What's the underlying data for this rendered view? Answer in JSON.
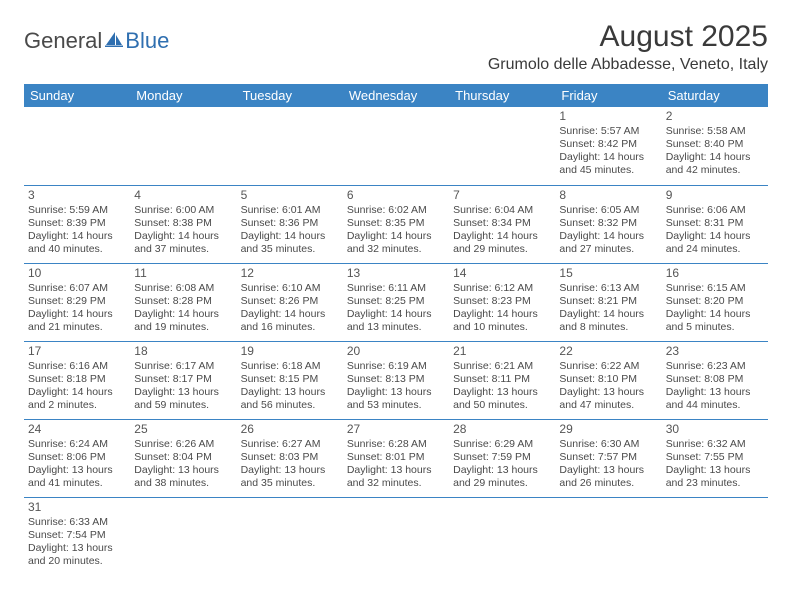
{
  "logo": {
    "part1": "General",
    "part2": "Blue"
  },
  "title": "August 2025",
  "location": "Grumolo delle Abbadesse, Veneto, Italy",
  "colors": {
    "header_bg": "#3b84c4",
    "header_text": "#ffffff",
    "border": "#3b84c4",
    "text": "#4a4a4a",
    "logo_blue": "#2f6fb0"
  },
  "dayHeaders": [
    "Sunday",
    "Monday",
    "Tuesday",
    "Wednesday",
    "Thursday",
    "Friday",
    "Saturday"
  ],
  "weeks": [
    [
      null,
      null,
      null,
      null,
      null,
      {
        "n": "1",
        "sr": "Sunrise: 5:57 AM",
        "ss": "Sunset: 8:42 PM",
        "d1": "Daylight: 14 hours",
        "d2": "and 45 minutes."
      },
      {
        "n": "2",
        "sr": "Sunrise: 5:58 AM",
        "ss": "Sunset: 8:40 PM",
        "d1": "Daylight: 14 hours",
        "d2": "and 42 minutes."
      }
    ],
    [
      {
        "n": "3",
        "sr": "Sunrise: 5:59 AM",
        "ss": "Sunset: 8:39 PM",
        "d1": "Daylight: 14 hours",
        "d2": "and 40 minutes."
      },
      {
        "n": "4",
        "sr": "Sunrise: 6:00 AM",
        "ss": "Sunset: 8:38 PM",
        "d1": "Daylight: 14 hours",
        "d2": "and 37 minutes."
      },
      {
        "n": "5",
        "sr": "Sunrise: 6:01 AM",
        "ss": "Sunset: 8:36 PM",
        "d1": "Daylight: 14 hours",
        "d2": "and 35 minutes."
      },
      {
        "n": "6",
        "sr": "Sunrise: 6:02 AM",
        "ss": "Sunset: 8:35 PM",
        "d1": "Daylight: 14 hours",
        "d2": "and 32 minutes."
      },
      {
        "n": "7",
        "sr": "Sunrise: 6:04 AM",
        "ss": "Sunset: 8:34 PM",
        "d1": "Daylight: 14 hours",
        "d2": "and 29 minutes."
      },
      {
        "n": "8",
        "sr": "Sunrise: 6:05 AM",
        "ss": "Sunset: 8:32 PM",
        "d1": "Daylight: 14 hours",
        "d2": "and 27 minutes."
      },
      {
        "n": "9",
        "sr": "Sunrise: 6:06 AM",
        "ss": "Sunset: 8:31 PM",
        "d1": "Daylight: 14 hours",
        "d2": "and 24 minutes."
      }
    ],
    [
      {
        "n": "10",
        "sr": "Sunrise: 6:07 AM",
        "ss": "Sunset: 8:29 PM",
        "d1": "Daylight: 14 hours",
        "d2": "and 21 minutes."
      },
      {
        "n": "11",
        "sr": "Sunrise: 6:08 AM",
        "ss": "Sunset: 8:28 PM",
        "d1": "Daylight: 14 hours",
        "d2": "and 19 minutes."
      },
      {
        "n": "12",
        "sr": "Sunrise: 6:10 AM",
        "ss": "Sunset: 8:26 PM",
        "d1": "Daylight: 14 hours",
        "d2": "and 16 minutes."
      },
      {
        "n": "13",
        "sr": "Sunrise: 6:11 AM",
        "ss": "Sunset: 8:25 PM",
        "d1": "Daylight: 14 hours",
        "d2": "and 13 minutes."
      },
      {
        "n": "14",
        "sr": "Sunrise: 6:12 AM",
        "ss": "Sunset: 8:23 PM",
        "d1": "Daylight: 14 hours",
        "d2": "and 10 minutes."
      },
      {
        "n": "15",
        "sr": "Sunrise: 6:13 AM",
        "ss": "Sunset: 8:21 PM",
        "d1": "Daylight: 14 hours",
        "d2": "and 8 minutes."
      },
      {
        "n": "16",
        "sr": "Sunrise: 6:15 AM",
        "ss": "Sunset: 8:20 PM",
        "d1": "Daylight: 14 hours",
        "d2": "and 5 minutes."
      }
    ],
    [
      {
        "n": "17",
        "sr": "Sunrise: 6:16 AM",
        "ss": "Sunset: 8:18 PM",
        "d1": "Daylight: 14 hours",
        "d2": "and 2 minutes."
      },
      {
        "n": "18",
        "sr": "Sunrise: 6:17 AM",
        "ss": "Sunset: 8:17 PM",
        "d1": "Daylight: 13 hours",
        "d2": "and 59 minutes."
      },
      {
        "n": "19",
        "sr": "Sunrise: 6:18 AM",
        "ss": "Sunset: 8:15 PM",
        "d1": "Daylight: 13 hours",
        "d2": "and 56 minutes."
      },
      {
        "n": "20",
        "sr": "Sunrise: 6:19 AM",
        "ss": "Sunset: 8:13 PM",
        "d1": "Daylight: 13 hours",
        "d2": "and 53 minutes."
      },
      {
        "n": "21",
        "sr": "Sunrise: 6:21 AM",
        "ss": "Sunset: 8:11 PM",
        "d1": "Daylight: 13 hours",
        "d2": "and 50 minutes."
      },
      {
        "n": "22",
        "sr": "Sunrise: 6:22 AM",
        "ss": "Sunset: 8:10 PM",
        "d1": "Daylight: 13 hours",
        "d2": "and 47 minutes."
      },
      {
        "n": "23",
        "sr": "Sunrise: 6:23 AM",
        "ss": "Sunset: 8:08 PM",
        "d1": "Daylight: 13 hours",
        "d2": "and 44 minutes."
      }
    ],
    [
      {
        "n": "24",
        "sr": "Sunrise: 6:24 AM",
        "ss": "Sunset: 8:06 PM",
        "d1": "Daylight: 13 hours",
        "d2": "and 41 minutes."
      },
      {
        "n": "25",
        "sr": "Sunrise: 6:26 AM",
        "ss": "Sunset: 8:04 PM",
        "d1": "Daylight: 13 hours",
        "d2": "and 38 minutes."
      },
      {
        "n": "26",
        "sr": "Sunrise: 6:27 AM",
        "ss": "Sunset: 8:03 PM",
        "d1": "Daylight: 13 hours",
        "d2": "and 35 minutes."
      },
      {
        "n": "27",
        "sr": "Sunrise: 6:28 AM",
        "ss": "Sunset: 8:01 PM",
        "d1": "Daylight: 13 hours",
        "d2": "and 32 minutes."
      },
      {
        "n": "28",
        "sr": "Sunrise: 6:29 AM",
        "ss": "Sunset: 7:59 PM",
        "d1": "Daylight: 13 hours",
        "d2": "and 29 minutes."
      },
      {
        "n": "29",
        "sr": "Sunrise: 6:30 AM",
        "ss": "Sunset: 7:57 PM",
        "d1": "Daylight: 13 hours",
        "d2": "and 26 minutes."
      },
      {
        "n": "30",
        "sr": "Sunrise: 6:32 AM",
        "ss": "Sunset: 7:55 PM",
        "d1": "Daylight: 13 hours",
        "d2": "and 23 minutes."
      }
    ],
    [
      {
        "n": "31",
        "sr": "Sunrise: 6:33 AM",
        "ss": "Sunset: 7:54 PM",
        "d1": "Daylight: 13 hours",
        "d2": "and 20 minutes."
      },
      null,
      null,
      null,
      null,
      null,
      null
    ]
  ]
}
